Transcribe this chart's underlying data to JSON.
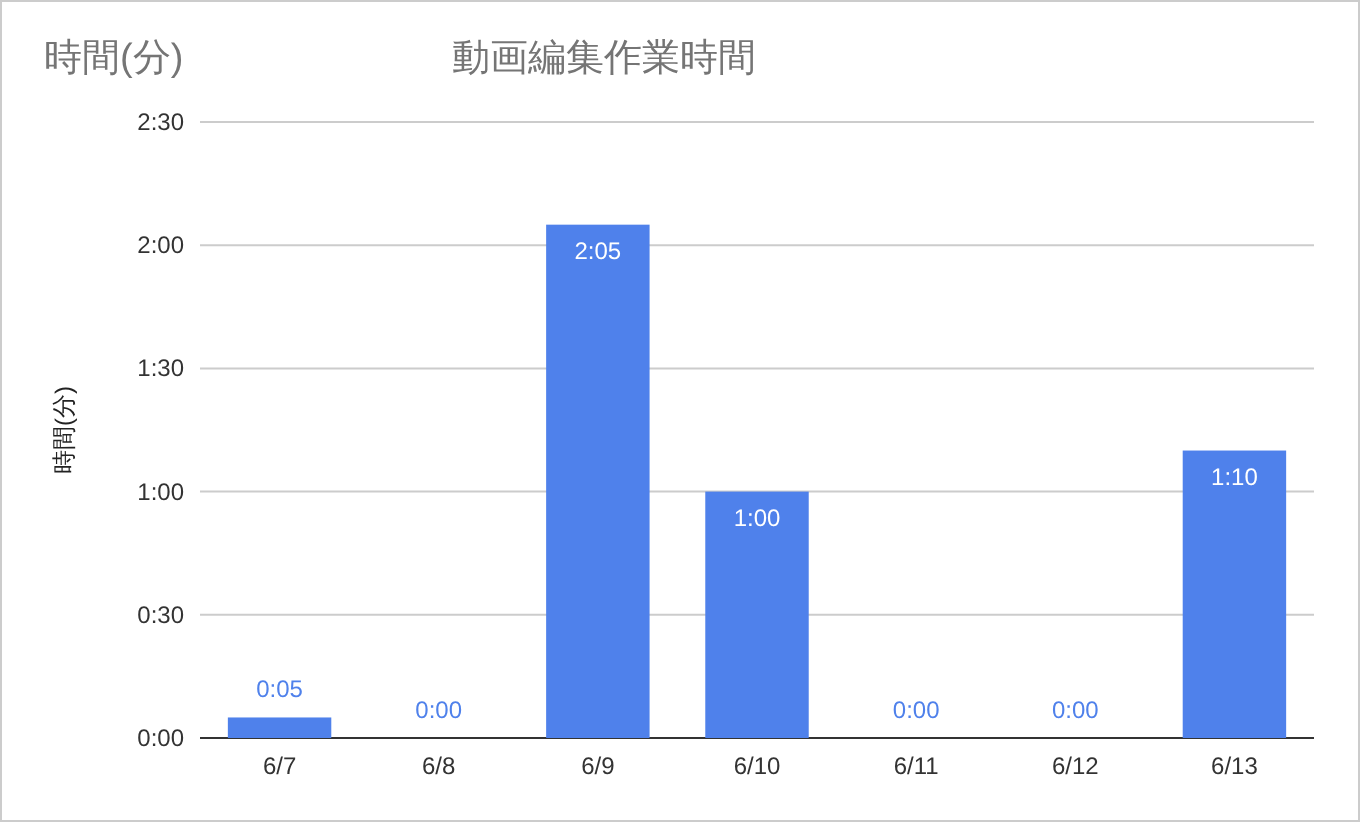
{
  "chart_data": {
    "type": "bar",
    "title": "動画編集作業時間",
    "ylabel": "時間(分)",
    "annotations": [
      "時間(分)"
    ],
    "categories": [
      "6/7",
      "6/8",
      "6/9",
      "6/10",
      "6/11",
      "6/12",
      "6/13"
    ],
    "values": [
      5,
      0,
      125,
      60,
      0,
      0,
      70
    ],
    "value_labels": [
      "0:05",
      "0:00",
      "2:05",
      "1:00",
      "0:00",
      "0:00",
      "1:10"
    ],
    "color": "#4f81eb",
    "ylim": [
      0,
      150
    ],
    "yticks": [
      {
        "value": 0,
        "label": "0:00"
      },
      {
        "value": 30,
        "label": "0:30"
      },
      {
        "value": 60,
        "label": "1:00"
      },
      {
        "value": 90,
        "label": "1:30"
      },
      {
        "value": 120,
        "label": "2:00"
      },
      {
        "value": 150,
        "label": "2:30"
      }
    ],
    "grid": "y"
  }
}
